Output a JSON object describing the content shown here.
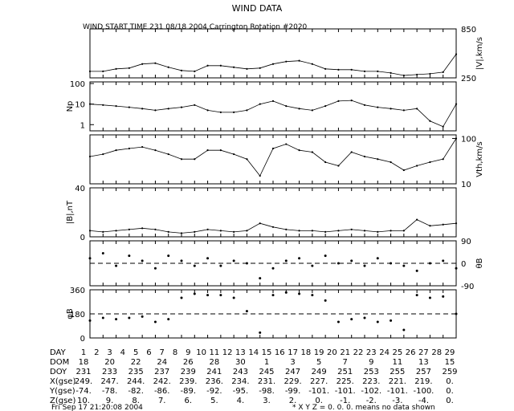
{
  "title": "WIND DATA",
  "subtitle": "WIND START TIME 231 08/18 2004 Carrington Rotation #2020",
  "timestamp": "Fri Sep 17 21:20:08 2004",
  "footnote": "* X Y Z = 0. 0. 0. means no data shown",
  "chart_data": [
    {
      "type": "line",
      "panel": "speed",
      "ylabel_right": "|V|,km/s",
      "ticks_right": [
        "850",
        "250"
      ],
      "ylim": [
        250,
        850
      ],
      "x": [
        0,
        1,
        2,
        3,
        4,
        5,
        6,
        7,
        8,
        9,
        10,
        11,
        12,
        13,
        14,
        15,
        16,
        17,
        18,
        19,
        20,
        21,
        22,
        23,
        24,
        25,
        26,
        27,
        28
      ],
      "values": [
        330,
        330,
        360,
        370,
        420,
        430,
        380,
        340,
        330,
        400,
        400,
        380,
        360,
        370,
        420,
        450,
        460,
        420,
        360,
        350,
        350,
        330,
        330,
        310,
        280,
        290,
        300,
        320,
        540
      ]
    },
    {
      "type": "line",
      "panel": "density",
      "ylabel_left": "Np",
      "ticks_left": [
        "100",
        "10",
        "1"
      ],
      "scale": "log",
      "ylim": [
        0.5,
        120
      ],
      "x": [
        0,
        1,
        2,
        3,
        4,
        5,
        6,
        7,
        8,
        9,
        10,
        11,
        12,
        13,
        14,
        15,
        16,
        17,
        18,
        19,
        20,
        21,
        22,
        23,
        24,
        25,
        26,
        27,
        28
      ],
      "values": [
        10,
        9,
        8,
        7,
        6,
        5,
        6,
        7,
        9,
        5,
        4,
        4,
        5,
        10,
        14,
        8,
        6,
        5,
        8,
        14,
        15,
        9,
        7,
        6,
        5,
        6,
        1.5,
        0.8,
        10
      ]
    },
    {
      "type": "line",
      "panel": "thermal_speed",
      "ylabel_right": "Vth,km/s",
      "ticks_right": [
        "100",
        "10"
      ],
      "scale": "log",
      "ylim": [
        10,
        120
      ],
      "x": [
        0,
        1,
        2,
        3,
        4,
        5,
        6,
        7,
        8,
        9,
        10,
        11,
        12,
        13,
        14,
        15,
        16,
        17,
        18,
        19,
        20,
        21,
        22,
        23,
        24,
        25,
        26,
        27,
        28
      ],
      "values": [
        40,
        45,
        55,
        60,
        65,
        55,
        45,
        35,
        35,
        55,
        55,
        45,
        35,
        15,
        60,
        75,
        55,
        50,
        30,
        25,
        50,
        40,
        35,
        30,
        20,
        25,
        30,
        35,
        100
      ]
    },
    {
      "type": "line",
      "panel": "field_magnitude",
      "ylabel_left": "|B|,nT",
      "ticks_left": [
        "40",
        "0"
      ],
      "ylim": [
        0,
        40
      ],
      "x": [
        0,
        1,
        2,
        3,
        4,
        5,
        6,
        7,
        8,
        9,
        10,
        11,
        12,
        13,
        14,
        15,
        16,
        17,
        18,
        19,
        20,
        21,
        22,
        23,
        24,
        25,
        26,
        27,
        28
      ],
      "values": [
        5,
        4,
        5,
        6,
        7,
        6,
        4,
        3,
        4,
        6,
        5,
        4,
        5,
        11,
        8,
        6,
        5,
        5,
        4,
        5,
        6,
        5,
        4,
        5,
        5,
        14,
        9,
        10,
        11
      ]
    },
    {
      "type": "scatter",
      "panel": "theta_b",
      "ylabel_right": "θB",
      "ticks_right": [
        "90",
        "0",
        "-90"
      ],
      "ylim": [
        -90,
        90
      ],
      "reference_line": 0,
      "x": [
        0,
        1,
        2,
        3,
        4,
        5,
        6,
        7,
        8,
        9,
        10,
        11,
        12,
        13,
        14,
        15,
        16,
        17,
        18,
        19,
        20,
        21,
        22,
        23,
        24,
        25,
        26,
        27,
        28
      ],
      "values": [
        20,
        40,
        -10,
        30,
        10,
        -20,
        30,
        10,
        -10,
        20,
        -10,
        10,
        0,
        -60,
        -20,
        10,
        20,
        -10,
        30,
        0,
        10,
        -10,
        20,
        0,
        -10,
        -30,
        0,
        10,
        -20
      ]
    },
    {
      "type": "scatter",
      "panel": "phi_b",
      "ylabel_left": "φB",
      "ticks_left": [
        "360",
        "180",
        "0"
      ],
      "ylim": [
        0,
        360
      ],
      "reference_line": 180,
      "x": [
        0,
        1,
        2,
        3,
        4,
        5,
        6,
        7,
        8,
        9,
        10,
        11,
        12,
        13,
        14,
        15,
        16,
        17,
        18,
        19,
        20,
        21,
        22,
        23,
        24,
        25,
        26,
        27,
        28
      ],
      "values": [
        130,
        150,
        140,
        150,
        160,
        120,
        140,
        300,
        330,
        320,
        320,
        300,
        200,
        40,
        320,
        340,
        330,
        320,
        280,
        120,
        140,
        150,
        120,
        130,
        60,
        320,
        300,
        310,
        180
      ]
    }
  ],
  "table": {
    "rows": [
      {
        "label": "DAY",
        "cells": [
          "1",
          "2",
          "3",
          "4",
          "5",
          "6",
          "7",
          "8",
          "9",
          "10",
          "11",
          "12",
          "13",
          "14",
          "15",
          "16",
          "17",
          "18",
          "19",
          "20",
          "21",
          "22",
          "23",
          "24",
          "25",
          "26",
          "27",
          "28",
          "29"
        ]
      },
      {
        "label": "DOM",
        "cells": [
          "18",
          "20",
          "22",
          "24",
          "26",
          "28",
          "30",
          "1",
          "3",
          "5",
          "7",
          "9",
          "11",
          "13",
          "15"
        ]
      },
      {
        "label": "DOY",
        "cells": [
          "231",
          "233",
          "235",
          "237",
          "239",
          "241",
          "243",
          "245",
          "247",
          "249",
          "251",
          "253",
          "255",
          "257",
          "259"
        ]
      },
      {
        "label": "X(gse)",
        "cells": [
          "249.",
          "247.",
          "244.",
          "242.",
          "239.",
          "236.",
          "234.",
          "231.",
          "229.",
          "227.",
          "225.",
          "223.",
          "221.",
          "219.",
          "0."
        ]
      },
      {
        "label": "Y(gse)",
        "cells": [
          "-74.",
          "-78.",
          "-82.",
          "-86.",
          "-89.",
          "-92.",
          "-95.",
          "-98.",
          "-99.",
          "-101.",
          "-101.",
          "-102.",
          "-101.",
          "-100.",
          "0."
        ]
      },
      {
        "label": "Z(gse)",
        "cells": [
          "10.",
          "9.",
          "8.",
          "7.",
          "6.",
          "5.",
          "4.",
          "3.",
          "2.",
          "0.",
          "-1.",
          "-2.",
          "-3.",
          "-4.",
          "0."
        ]
      }
    ]
  }
}
